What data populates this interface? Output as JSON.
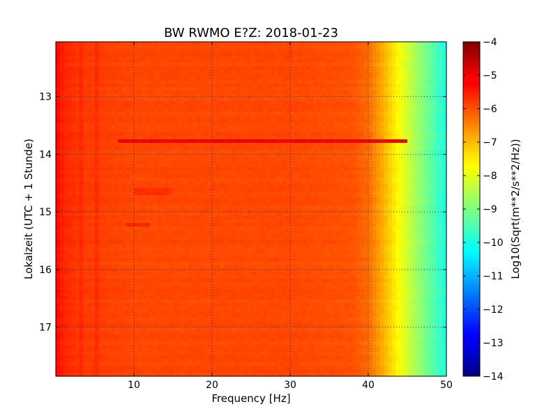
{
  "chart_data": {
    "type": "heatmap",
    "title": "BW RWMO E?Z: 2018-01-23",
    "xlabel": "Frequency [Hz]",
    "ylabel": "Lokalzeit (UTC + 1 Stunde)",
    "xlim": [
      0,
      50
    ],
    "ylim": [
      17.85,
      12.05
    ],
    "xticks": [
      10,
      20,
      30,
      40,
      50
    ],
    "yticks": [
      13,
      14,
      15,
      16,
      17
    ],
    "grid": true,
    "colormap": "jet",
    "colorbar": {
      "label": "Log10(Sqrt(m**2/s**2/Hz))",
      "range": [
        -14,
        -4
      ],
      "ticks": [
        -4,
        -5,
        -6,
        -7,
        -8,
        -9,
        -10,
        -11,
        -12,
        -13,
        -14
      ]
    },
    "spectral_profile": {
      "frequency_hz": [
        0,
        1,
        3,
        10,
        20,
        30,
        38,
        40,
        42,
        44,
        46,
        48,
        50
      ],
      "log10_amplitude": [
        -5.3,
        -5.6,
        -5.8,
        -5.95,
        -5.95,
        -5.95,
        -6.05,
        -6.3,
        -7.0,
        -7.8,
        -8.6,
        -9.3,
        -10.0
      ]
    },
    "features": [
      {
        "time_h": 13.77,
        "freq_range_hz": [
          8,
          45
        ],
        "log10_amplitude": -5.1
      },
      {
        "time_h": 15.23,
        "freq_range_hz": [
          9,
          12
        ],
        "log10_amplitude": -5.6
      },
      {
        "time_h": 14.65,
        "freq_range_hz": [
          10,
          15
        ],
        "log10_amplitude": -5.7
      }
    ],
    "vertical_lines_hz": [
      3.2,
      5.2
    ]
  }
}
